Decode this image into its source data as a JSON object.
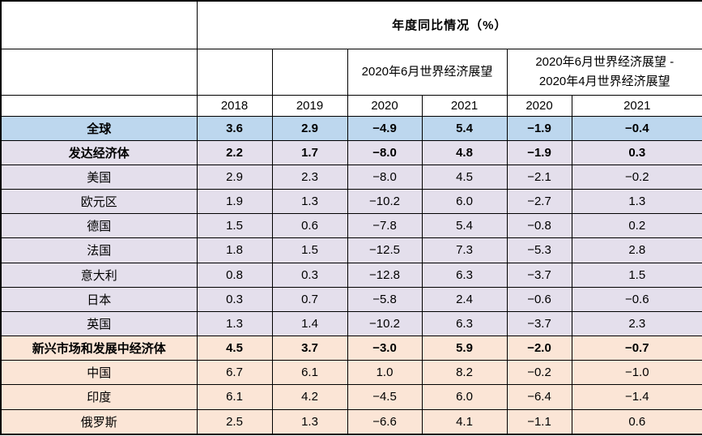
{
  "table": {
    "title": "年度同比情况（%）",
    "group_headers": [
      {
        "label": "2020年6月世界经济展望"
      },
      {
        "label": "2020年6月世界经济展望 -\n2020年4月世界经济展望"
      }
    ],
    "year_headers": [
      "2018",
      "2019",
      "2020",
      "2021",
      "2020",
      "2021"
    ],
    "rows": [
      {
        "label": "全球",
        "style": "global",
        "bold": true,
        "values": [
          "3.6",
          "2.9",
          "−4.9",
          "5.4",
          "−1.9",
          "−0.4"
        ]
      },
      {
        "label": "发达经济体",
        "style": "advanced",
        "bold": true,
        "values": [
          "2.2",
          "1.7",
          "−8.0",
          "4.8",
          "−1.9",
          "0.3"
        ]
      },
      {
        "label": "美国",
        "style": "advanced",
        "bold": false,
        "values": [
          "2.9",
          "2.3",
          "−8.0",
          "4.5",
          "−2.1",
          "−0.2"
        ]
      },
      {
        "label": "欧元区",
        "style": "advanced",
        "bold": false,
        "values": [
          "1.9",
          "1.3",
          "−10.2",
          "6.0",
          "−2.7",
          "1.3"
        ]
      },
      {
        "label": "德国",
        "style": "advanced",
        "bold": false,
        "values": [
          "1.5",
          "0.6",
          "−7.8",
          "5.4",
          "−0.8",
          "0.2"
        ]
      },
      {
        "label": "法国",
        "style": "advanced",
        "bold": false,
        "values": [
          "1.8",
          "1.5",
          "−12.5",
          "7.3",
          "−5.3",
          "2.8"
        ]
      },
      {
        "label": "意大利",
        "style": "advanced",
        "bold": false,
        "values": [
          "0.8",
          "0.3",
          "−12.8",
          "6.3",
          "−3.7",
          "1.5"
        ]
      },
      {
        "label": "日本",
        "style": "advanced",
        "bold": false,
        "values": [
          "0.3",
          "0.7",
          "−5.8",
          "2.4",
          "−0.6",
          "−0.6"
        ]
      },
      {
        "label": "英国",
        "style": "advanced",
        "bold": false,
        "values": [
          "1.3",
          "1.4",
          "−10.2",
          "6.3",
          "−3.7",
          "2.3"
        ]
      },
      {
        "label": "新兴市场和发展中经济体",
        "style": "emerging",
        "bold": true,
        "values": [
          "4.5",
          "3.7",
          "−3.0",
          "5.9",
          "−2.0",
          "−0.7"
        ]
      },
      {
        "label": "中国",
        "style": "emerging",
        "bold": false,
        "values": [
          "6.7",
          "6.1",
          "1.0",
          "8.2",
          "−0.2",
          "−1.0"
        ]
      },
      {
        "label": "印度",
        "style": "emerging",
        "bold": false,
        "values": [
          "6.1",
          "4.2",
          "−4.5",
          "6.0",
          "−6.4",
          "−1.4"
        ]
      },
      {
        "label": "俄罗斯",
        "style": "emerging",
        "bold": false,
        "values": [
          "2.5",
          "1.3",
          "−6.6",
          "4.1",
          "−1.1",
          "0.6"
        ]
      }
    ],
    "colors": {
      "row_global": "#BDD7EE",
      "row_advanced": "#E4DFEC",
      "row_emerging": "#FBE5D6",
      "border": "#000000",
      "background": "#FFFFFF",
      "text": "#000000"
    }
  },
  "chart_data": {
    "type": "table",
    "title": "年度同比情况（%）",
    "column_groups": [
      "",
      "",
      "",
      "2020年6月世界经济展望",
      "2020年6月世界经济展望 - 2020年4月世界经济展望"
    ],
    "columns": [
      "",
      "2018",
      "2019",
      "2020",
      "2021",
      "2020",
      "2021"
    ],
    "rows": [
      [
        "全球",
        3.6,
        2.9,
        -4.9,
        5.4,
        -1.9,
        -0.4
      ],
      [
        "发达经济体",
        2.2,
        1.7,
        -8.0,
        4.8,
        -1.9,
        0.3
      ],
      [
        "美国",
        2.9,
        2.3,
        -8.0,
        4.5,
        -2.1,
        -0.2
      ],
      [
        "欧元区",
        1.9,
        1.3,
        -10.2,
        6.0,
        -2.7,
        1.3
      ],
      [
        "德国",
        1.5,
        0.6,
        -7.8,
        5.4,
        -0.8,
        0.2
      ],
      [
        "法国",
        1.8,
        1.5,
        -12.5,
        7.3,
        -5.3,
        2.8
      ],
      [
        "意大利",
        0.8,
        0.3,
        -12.8,
        6.3,
        -3.7,
        1.5
      ],
      [
        "日本",
        0.3,
        0.7,
        -5.8,
        2.4,
        -0.6,
        -0.6
      ],
      [
        "英国",
        1.3,
        1.4,
        -10.2,
        6.3,
        -3.7,
        2.3
      ],
      [
        "新兴市场和发展中经济体",
        4.5,
        3.7,
        -3.0,
        5.9,
        -2.0,
        -0.7
      ],
      [
        "中国",
        6.7,
        6.1,
        1.0,
        8.2,
        -0.2,
        -1.0
      ],
      [
        "印度",
        6.1,
        4.2,
        -4.5,
        6.0,
        -6.4,
        -1.4
      ],
      [
        "俄罗斯",
        2.5,
        1.3,
        -6.6,
        4.1,
        -1.1,
        0.6
      ]
    ]
  }
}
